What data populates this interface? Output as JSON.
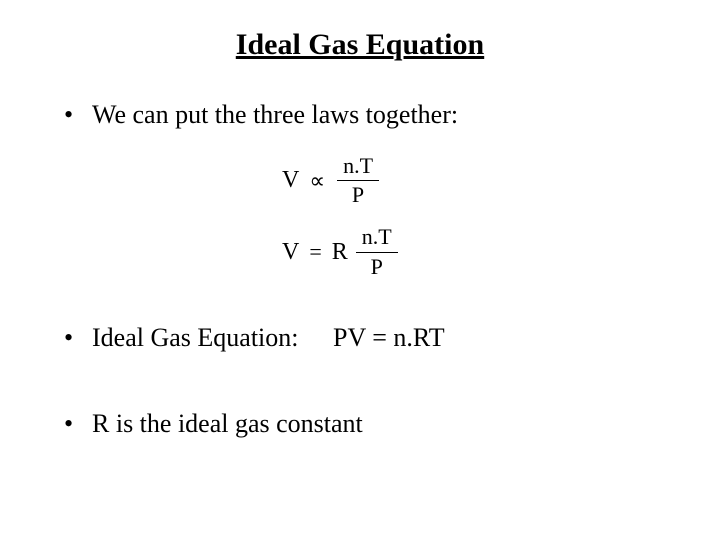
{
  "title": "Ideal Gas Equation",
  "bullets": {
    "item1": "We can put the three laws together:",
    "item2_label": "Ideal Gas Equation:",
    "item2_equation": "PV = n.RT",
    "item3": "R is the ideal gas constant"
  },
  "equations": {
    "eq1": {
      "lhs": "V",
      "relation": "∝",
      "frac_top": "n.T",
      "frac_bottom": "P"
    },
    "eq2": {
      "lhs": "V",
      "relation": "=",
      "coeff": "R",
      "frac_top": "n.T",
      "frac_bottom": "P"
    }
  },
  "style": {
    "background_color": "#ffffff",
    "text_color": "#000000",
    "title_fontsize": 30,
    "body_fontsize": 26,
    "equation_fontsize": 24
  }
}
